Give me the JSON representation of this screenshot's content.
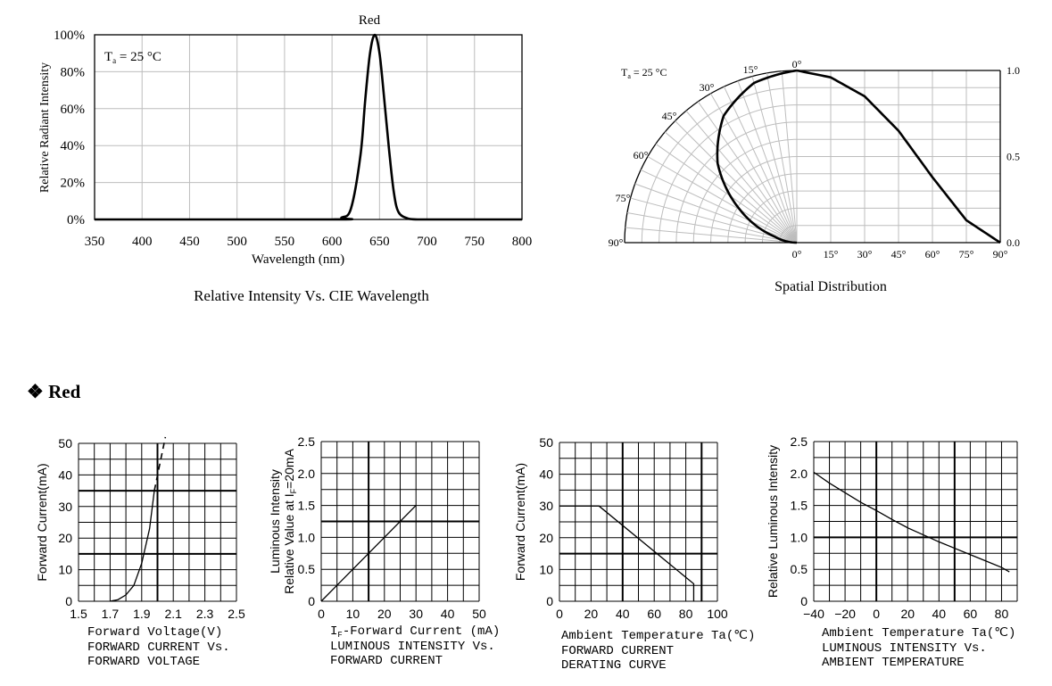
{
  "section": {
    "bullet": "❖",
    "title": "Red"
  },
  "chart_data": [
    {
      "type": "line",
      "series": [
        {
          "name": "Red",
          "x": [
            600,
            610,
            620,
            630,
            635,
            640,
            645,
            650,
            655,
            660,
            665,
            670,
            680,
            690,
            700
          ],
          "y": [
            0,
            1,
            6,
            35,
            65,
            90,
            100,
            90,
            65,
            38,
            15,
            4,
            0.5,
            0,
            0
          ]
        }
      ],
      "xticks": [
        "350",
        "400",
        "450",
        "500",
        "550",
        "600",
        "650",
        "700",
        "750",
        "800"
      ],
      "yticks": [
        "0%",
        "20%",
        "40%",
        "60%",
        "80%",
        "100%"
      ],
      "xlabel": "Wavelength (nm)",
      "ylabel": "Relative  Radiant Intensity",
      "xlim": [
        350,
        800
      ],
      "ylim": [
        0,
        100
      ],
      "annotation": {
        "T": "T",
        "sub": "a",
        "rest": " = 25 °C"
      },
      "caption": "Relative Intensity Vs. CIE Wavelength",
      "grid": true
    },
    {
      "type": "line",
      "series": [
        {
          "name": "",
          "angle": [
            0,
            15,
            30,
            45,
            60,
            75,
            90
          ],
          "value": [
            1.0,
            0.96,
            0.85,
            0.65,
            0.38,
            0.13,
            0.0
          ]
        }
      ],
      "angle_labels_left": [
        "0°",
        "15°",
        "30°",
        "45°",
        "60°",
        "75°",
        "90°"
      ],
      "angle_labels_bottom": [
        "0°",
        "15°",
        "30°",
        "45°",
        "60°",
        "75°",
        "90°"
      ],
      "yticks": [
        "0.0",
        "0.5",
        "1.0"
      ],
      "annotation": {
        "T": "T",
        "sub": "a",
        "rest": " = 25 °C"
      },
      "caption": "Spatial Distribution",
      "grid": true
    },
    {
      "type": "line",
      "series": [
        {
          "name": "",
          "x": [
            1.7,
            1.75,
            1.8,
            1.85,
            1.9,
            1.95,
            1.98
          ],
          "y": [
            0,
            0.5,
            2,
            5,
            12,
            23,
            35
          ]
        }
      ],
      "extrapolated": {
        "x": [
          1.98,
          2.05
        ],
        "y": [
          35,
          52
        ]
      },
      "xticks": [
        "1.5",
        "1.7",
        "1.9",
        "2.1",
        "2.3",
        "2.5"
      ],
      "yticks": [
        "0",
        "10",
        "20",
        "30",
        "40",
        "50"
      ],
      "xlim": [
        1.5,
        2.5
      ],
      "ylim": [
        0,
        50
      ],
      "xlabel": "Forward Voltage(V)",
      "ylabel": "Forward Current(mA)",
      "caption_lines": [
        "FORWARD CURRENT Vs.",
        "FORWARD VOLTAGE"
      ],
      "grid": true
    },
    {
      "type": "line",
      "series": [
        {
          "name": "",
          "x": [
            0,
            30
          ],
          "y": [
            0,
            1.5
          ]
        }
      ],
      "xticks": [
        "0",
        "10",
        "20",
        "30",
        "40",
        "50"
      ],
      "yticks": [
        "0",
        "0.5",
        "1.0",
        "1.5",
        "2.0",
        "2.5"
      ],
      "xlim": [
        0,
        50
      ],
      "ylim": [
        0,
        2.5
      ],
      "xlabel": {
        "prefix": "I",
        "sub": "F",
        "rest": "-Forward Current (mA)"
      },
      "ylabel_lines": [
        "Luminous Intensity",
        {
          "prefix": "Relative Value at I",
          "sub": "F",
          "rest": "=20mA"
        }
      ],
      "caption_lines": [
        "LUMINOUS INTENSITY Vs.",
        "FORWARD CURRENT"
      ],
      "grid": true
    },
    {
      "type": "line",
      "series": [
        {
          "name": "",
          "x": [
            0,
            25,
            85,
            85
          ],
          "y": [
            30,
            30,
            5.5,
            0
          ]
        }
      ],
      "xticks": [
        "0",
        "20",
        "40",
        "60",
        "80",
        "100"
      ],
      "yticks": [
        "0",
        "10",
        "20",
        "30",
        "40",
        "50"
      ],
      "xlim": [
        0,
        100
      ],
      "ylim": [
        0,
        50
      ],
      "xlabel": "Ambient Temperature Ta(℃)",
      "ylabel": "Forward Current(mA)",
      "caption_lines": [
        "FORWARD CURRENT",
        "DERATING CURVE"
      ],
      "grid": true
    },
    {
      "type": "line",
      "series": [
        {
          "name": "",
          "x": [
            -40,
            -30,
            -20,
            -10,
            0,
            10,
            20,
            30,
            40,
            50,
            60,
            70,
            80,
            85
          ],
          "y": [
            2.02,
            1.85,
            1.7,
            1.55,
            1.42,
            1.28,
            1.15,
            1.04,
            0.93,
            0.83,
            0.73,
            0.63,
            0.53,
            0.46
          ]
        }
      ],
      "xticks": [
        "−40",
        "−20",
        "0",
        "20",
        "40",
        "60",
        "80"
      ],
      "yticks": [
        "0",
        "0.5",
        "1.0",
        "1.5",
        "2.0",
        "2.5"
      ],
      "xlim": [
        -40,
        90
      ],
      "ylim": [
        0,
        2.5
      ],
      "xlabel": "Ambient Temperature Ta(℃)",
      "ylabel": "Relative Luminous Intensity",
      "caption_lines": [
        "LUMINOUS INTENSITY Vs.",
        "AMBIENT TEMPERATURE"
      ],
      "grid": true
    }
  ]
}
